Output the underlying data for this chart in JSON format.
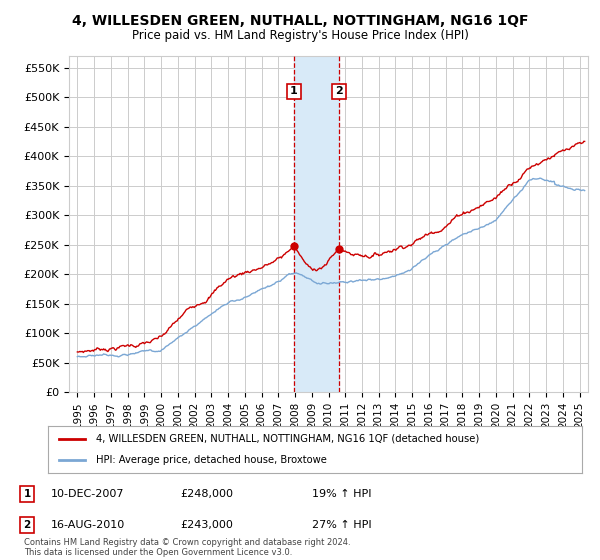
{
  "title": "4, WILLESDEN GREEN, NUTHALL, NOTTINGHAM, NG16 1QF",
  "subtitle": "Price paid vs. HM Land Registry's House Price Index (HPI)",
  "ylabel_ticks": [
    "£0",
    "£50K",
    "£100K",
    "£150K",
    "£200K",
    "£250K",
    "£300K",
    "£350K",
    "£400K",
    "£450K",
    "£500K",
    "£550K"
  ],
  "ytick_values": [
    0,
    50000,
    100000,
    150000,
    200000,
    250000,
    300000,
    350000,
    400000,
    450000,
    500000,
    550000
  ],
  "xlim_start": 1994.5,
  "xlim_end": 2025.5,
  "ylim_min": 0,
  "ylim_max": 570000,
  "sale1_date": "10-DEC-2007",
  "sale1_price": 248000,
  "sale1_hpi_pct": "19%",
  "sale1_x": 2007.94,
  "sale2_date": "16-AUG-2010",
  "sale2_price": 243000,
  "sale2_hpi_pct": "27%",
  "sale2_x": 2010.62,
  "legend_line1": "4, WILLESDEN GREEN, NUTHALL, NOTTINGHAM, NG16 1QF (detached house)",
  "legend_line2": "HPI: Average price, detached house, Broxtowe",
  "footer": "Contains HM Land Registry data © Crown copyright and database right 2024.\nThis data is licensed under the Open Government Licence v3.0.",
  "line_color_red": "#cc0000",
  "line_color_blue": "#7ba7d4",
  "bg_color": "#ffffff",
  "grid_color": "#cccccc",
  "shade_color": "#d8eaf8"
}
